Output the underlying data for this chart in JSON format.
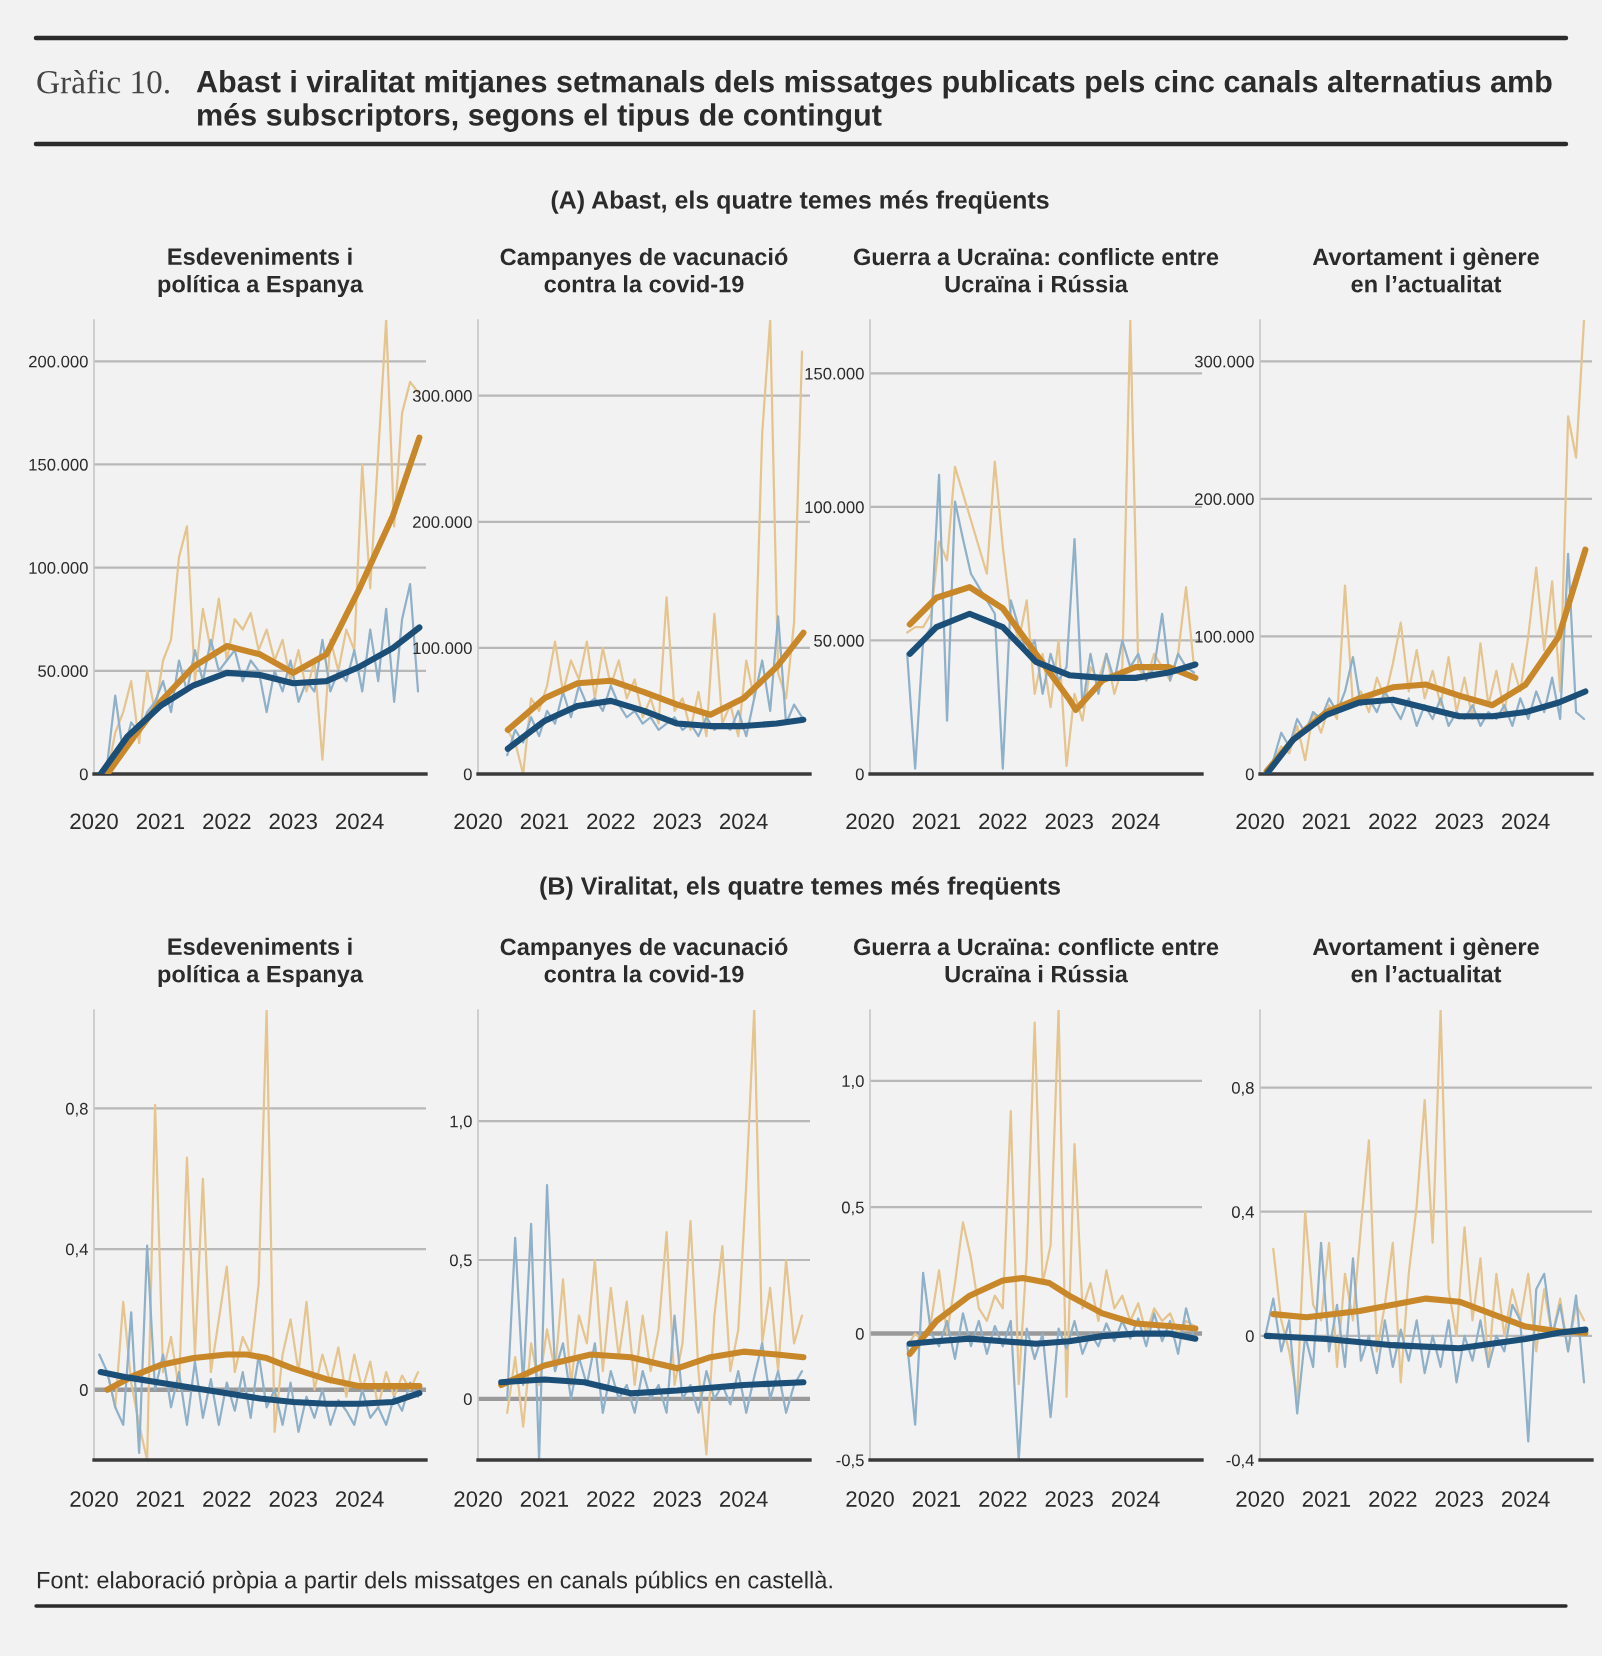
{
  "chart_data": [
    {
      "type": "line",
      "title": "Esdeveniments i\npolítica a Espanya",
      "annotations": [
        "Gràfic 10.",
        "Abast i viralitat mitjanes setmanals dels missatges publicats pels cinc canals alternatius amb més subscriptors, segons el tipus de contingut",
        "(A) Abast, els quatre temes més freqüents",
        "Font: elaboració pròpia a partir dels missatges en canals públics en castellà."
      ],
      "x": [
        2020.08,
        2020.2,
        2020.32,
        2020.44,
        2020.56,
        2020.68,
        2020.8,
        2020.92,
        2021.04,
        2021.16,
        2021.28,
        2021.4,
        2021.52,
        2021.64,
        2021.76,
        2021.88,
        2022.0,
        2022.12,
        2022.24,
        2022.36,
        2022.48,
        2022.6,
        2022.72,
        2022.84,
        2022.96,
        2023.08,
        2023.2,
        2023.32,
        2023.44,
        2023.56,
        2023.68,
        2023.8,
        2023.92,
        2024.04,
        2024.16,
        2024.28,
        2024.4,
        2024.52,
        2024.64,
        2024.76,
        2024.88
      ],
      "xlim": [
        2020,
        2025
      ],
      "xticks": [
        2020,
        2021,
        2022,
        2023,
        2024
      ],
      "yticks": [
        0,
        {
          "value": 50000,
          "label": "50.000"
        },
        {
          "value": 100000,
          "label": "100.000"
        },
        {
          "value": 150000,
          "label": "150.000"
        },
        {
          "value": 200000,
          "label": "200.000"
        }
      ],
      "ylim": [
        0,
        220000
      ],
      "grid": "y",
      "series": [
        {
          "color": "#e5c48e",
          "values": [
            null,
            0,
            20000,
            30000,
            45000,
            15000,
            50000,
            30000,
            55000,
            65000,
            105000,
            120000,
            45000,
            80000,
            60000,
            85000,
            55000,
            75000,
            70000,
            78000,
            60000,
            70000,
            55000,
            65000,
            45000,
            60000,
            40000,
            55000,
            7000,
            65000,
            50000,
            70000,
            60000,
            150000,
            90000,
            155000,
            220000,
            120000,
            175000,
            190000,
            185000
          ]
        },
        {
          "color": "#8fb0c9",
          "values": [
            0,
            5000,
            38000,
            10000,
            25000,
            20000,
            30000,
            35000,
            45000,
            30000,
            55000,
            40000,
            60000,
            45000,
            65000,
            50000,
            55000,
            60000,
            45000,
            55000,
            50000,
            30000,
            50000,
            40000,
            55000,
            35000,
            45000,
            40000,
            65000,
            40000,
            50000,
            45000,
            60000,
            40000,
            70000,
            45000,
            80000,
            35000,
            75000,
            92000,
            40000
          ]
        },
        {
          "color": "#c8882a",
          "x": [
            2020.2,
            2020.6,
            2021,
            2021.5,
            2022,
            2022.5,
            2023,
            2023.5,
            2024,
            2024.5,
            2024.9
          ],
          "values": [
            0,
            18000,
            35000,
            52000,
            62000,
            58000,
            49000,
            58000,
            90000,
            125000,
            163000
          ]
        },
        {
          "color": "#1c4f77",
          "x": [
            2020.1,
            2020.5,
            2021,
            2021.5,
            2022,
            2022.5,
            2023,
            2023.5,
            2024,
            2024.5,
            2024.9
          ],
          "values": [
            0,
            18000,
            33000,
            43000,
            49000,
            48000,
            44000,
            45000,
            52000,
            61000,
            71000
          ]
        }
      ]
    },
    {
      "type": "line",
      "title": "Campanyes de vacunació\ncontra la covid-19",
      "xlim": [
        2020,
        2025
      ],
      "xticks": [
        2020,
        2021,
        2022,
        2023,
        2024
      ],
      "yticks": [
        0,
        {
          "value": 100000,
          "label": "100.000"
        },
        {
          "value": 200000,
          "label": "200.000"
        },
        {
          "value": 300000,
          "label": "300.000"
        }
      ],
      "ylim": [
        0,
        360000
      ],
      "grid": "y",
      "series": [
        {
          "color": "#e5c48e",
          "x": [
            2020.44,
            2020.56,
            2020.68,
            2020.8,
            2020.92,
            2021.04,
            2021.16,
            2021.28,
            2021.4,
            2021.52,
            2021.64,
            2021.76,
            2021.88,
            2022.0,
            2022.12,
            2022.24,
            2022.36,
            2022.48,
            2022.6,
            2022.72,
            2022.84,
            2022.96,
            2023.08,
            2023.2,
            2023.32,
            2023.44,
            2023.56,
            2023.68,
            2023.8,
            2023.92,
            2024.04,
            2024.16,
            2024.28,
            2024.4,
            2024.52,
            2024.64,
            2024.76,
            2024.88
          ],
          "values": [
            35000,
            25000,
            0,
            60000,
            50000,
            70000,
            105000,
            65000,
            90000,
            75000,
            105000,
            60000,
            100000,
            70000,
            90000,
            60000,
            75000,
            45000,
            60000,
            40000,
            140000,
            50000,
            60000,
            35000,
            65000,
            30000,
            127000,
            40000,
            55000,
            30000,
            90000,
            60000,
            270000,
            360000,
            80000,
            60000,
            120000,
            335000
          ]
        },
        {
          "color": "#8fb0c9",
          "x": [
            2020.44,
            2020.56,
            2020.68,
            2020.8,
            2020.92,
            2021.04,
            2021.16,
            2021.28,
            2021.4,
            2021.52,
            2021.64,
            2021.76,
            2021.88,
            2022.0,
            2022.12,
            2022.24,
            2022.36,
            2022.48,
            2022.6,
            2022.72,
            2022.84,
            2022.96,
            2023.08,
            2023.2,
            2023.32,
            2023.44,
            2023.56,
            2023.68,
            2023.8,
            2023.92,
            2024.04,
            2024.16,
            2024.28,
            2024.4,
            2024.52,
            2024.64,
            2024.76,
            2024.88
          ],
          "values": [
            15000,
            35000,
            25000,
            45000,
            30000,
            50000,
            40000,
            65000,
            45000,
            70000,
            55000,
            60000,
            50000,
            70000,
            55000,
            45000,
            50000,
            40000,
            45000,
            35000,
            40000,
            45000,
            35000,
            40000,
            30000,
            45000,
            35000,
            40000,
            35000,
            50000,
            30000,
            60000,
            90000,
            50000,
            125000,
            40000,
            55000,
            45000
          ]
        },
        {
          "color": "#c8882a",
          "x": [
            2020.45,
            2021,
            2021.5,
            2022,
            2022.5,
            2023,
            2023.5,
            2024,
            2024.5,
            2024.9
          ],
          "values": [
            35000,
            60000,
            72000,
            74000,
            65000,
            55000,
            47000,
            60000,
            85000,
            112000
          ]
        },
        {
          "color": "#1c4f77",
          "x": [
            2020.45,
            2021,
            2021.5,
            2022,
            2022.5,
            2023,
            2023.5,
            2024,
            2024.5,
            2024.9
          ],
          "values": [
            20000,
            42000,
            54000,
            58000,
            50000,
            40000,
            38000,
            38000,
            40000,
            43000
          ]
        }
      ]
    },
    {
      "type": "line",
      "title": "Guerra a Ucraïna: conflicte entre\nUcraïna i Rússia",
      "xlim": [
        2020,
        2025
      ],
      "xticks": [
        2020,
        2021,
        2022,
        2023,
        2024
      ],
      "yticks": [
        0,
        {
          "value": 50000,
          "label": "50.000"
        },
        {
          "value": 100000,
          "label": "100.000"
        },
        {
          "value": 150000,
          "label": "150.000"
        }
      ],
      "ylim": [
        0,
        170000
      ],
      "grid": "y",
      "series": [
        {
          "color": "#e5c48e",
          "x": [
            2020.56,
            2020.68,
            2020.8,
            2020.92,
            2021.04,
            2021.16,
            2021.28,
            2021.4,
            2021.52,
            2021.64,
            2021.76,
            2021.88,
            2022.0,
            2022.12,
            2022.24,
            2022.36,
            2022.48,
            2022.6,
            2022.72,
            2022.84,
            2022.96,
            2023.08,
            2023.2,
            2023.32,
            2023.44,
            2023.56,
            2023.68,
            2023.8,
            2023.92,
            2024.04,
            2024.16,
            2024.28,
            2024.4,
            2024.52,
            2024.64,
            2024.76,
            2024.88
          ],
          "values": [
            53000,
            55000,
            55000,
            60000,
            87000,
            80000,
            115000,
            105000,
            95000,
            85000,
            75000,
            117000,
            85000,
            60000,
            50000,
            65000,
            30000,
            45000,
            25000,
            50000,
            3000,
            30000,
            20000,
            40000,
            35000,
            45000,
            30000,
            40000,
            170000,
            40000,
            35000,
            45000,
            40000,
            35000,
            45000,
            70000,
            40000
          ]
        },
        {
          "color": "#8fb0c9",
          "x": [
            2020.56,
            2020.68,
            2020.8,
            2020.92,
            2021.04,
            2021.16,
            2021.28,
            2021.4,
            2021.52,
            2021.64,
            2021.76,
            2021.88,
            2022.0,
            2022.12,
            2022.24,
            2022.36,
            2022.48,
            2022.6,
            2022.72,
            2022.84,
            2022.96,
            2023.08,
            2023.2,
            2023.32,
            2023.44,
            2023.56,
            2023.68,
            2023.8,
            2023.92,
            2024.04,
            2024.16,
            2024.28,
            2024.4,
            2024.52,
            2024.64,
            2024.76,
            2024.88
          ],
          "values": [
            45000,
            2000,
            50000,
            55000,
            112000,
            20000,
            102000,
            88000,
            75000,
            70000,
            65000,
            60000,
            2000,
            65000,
            55000,
            45000,
            50000,
            30000,
            45000,
            35000,
            40000,
            88000,
            25000,
            45000,
            30000,
            45000,
            35000,
            50000,
            40000,
            45000,
            35000,
            40000,
            60000,
            35000,
            45000,
            40000,
            38000
          ]
        },
        {
          "color": "#c8882a",
          "x": [
            2020.6,
            2021,
            2021.5,
            2022,
            2022.5,
            2023,
            2023.1,
            2023.5,
            2024,
            2024.5,
            2024.9
          ],
          "values": [
            56000,
            66000,
            70000,
            62000,
            45000,
            28000,
            24000,
            35000,
            40000,
            40000,
            36000
          ]
        },
        {
          "color": "#1c4f77",
          "x": [
            2020.6,
            2021,
            2021.5,
            2022,
            2022.5,
            2023,
            2023.5,
            2024,
            2024.5,
            2024.9
          ],
          "values": [
            45000,
            55000,
            60000,
            55000,
            42000,
            37000,
            36000,
            36000,
            38000,
            41000
          ]
        }
      ]
    },
    {
      "type": "line",
      "title": "Avortament i gènere\nen l’actualitat",
      "x": [
        2020.08,
        2020.2,
        2020.32,
        2020.44,
        2020.56,
        2020.68,
        2020.8,
        2020.92,
        2021.04,
        2021.16,
        2021.28,
        2021.4,
        2021.52,
        2021.64,
        2021.76,
        2021.88,
        2022.0,
        2022.12,
        2022.24,
        2022.36,
        2022.48,
        2022.6,
        2022.72,
        2022.84,
        2022.96,
        2023.08,
        2023.2,
        2023.32,
        2023.44,
        2023.56,
        2023.68,
        2023.8,
        2023.92,
        2024.04,
        2024.16,
        2024.28,
        2024.4,
        2024.52,
        2024.64,
        2024.76,
        2024.88
      ],
      "xlim": [
        2020,
        2025
      ],
      "xticks": [
        2020,
        2021,
        2022,
        2023,
        2024
      ],
      "yticks": [
        0,
        {
          "value": 100000,
          "label": "100.000"
        },
        {
          "value": 200000,
          "label": "200.000"
        },
        {
          "value": 300000,
          "label": "300.000"
        }
      ],
      "ylim": [
        0,
        330000
      ],
      "grid": "y",
      "series": [
        {
          "color": "#e5c48e",
          "values": [
            null,
            10000,
            20000,
            15000,
            35000,
            10000,
            45000,
            30000,
            50000,
            40000,
            137000,
            50000,
            60000,
            45000,
            70000,
            55000,
            80000,
            110000,
            60000,
            90000,
            55000,
            75000,
            50000,
            85000,
            45000,
            70000,
            40000,
            95000,
            50000,
            75000,
            45000,
            80000,
            60000,
            100000,
            150000,
            90000,
            140000,
            60000,
            260000,
            230000,
            330000
          ]
        },
        {
          "color": "#8fb0c9",
          "values": [
            0,
            10000,
            30000,
            20000,
            40000,
            30000,
            45000,
            40000,
            55000,
            45000,
            60000,
            85000,
            50000,
            55000,
            45000,
            60000,
            50000,
            40000,
            55000,
            35000,
            50000,
            40000,
            55000,
            35000,
            45000,
            40000,
            50000,
            35000,
            45000,
            40000,
            50000,
            35000,
            55000,
            40000,
            60000,
            45000,
            70000,
            40000,
            160000,
            45000,
            40000
          ]
        },
        {
          "color": "#c8882a",
          "x": [
            2020.1,
            2020.5,
            2021,
            2021.5,
            2022,
            2022.5,
            2023,
            2023.5,
            2024,
            2024.5,
            2024.9
          ],
          "values": [
            2000,
            25000,
            45000,
            55000,
            63000,
            65000,
            57000,
            50000,
            65000,
            100000,
            163000
          ]
        },
        {
          "color": "#1c4f77",
          "x": [
            2020.1,
            2020.5,
            2021,
            2021.5,
            2022,
            2022.5,
            2023,
            2023.5,
            2024,
            2024.5,
            2024.9
          ],
          "values": [
            0,
            25000,
            43000,
            52000,
            54000,
            48000,
            42000,
            42000,
            45000,
            52000,
            60000
          ]
        }
      ]
    },
    {
      "type": "line",
      "title": "Esdeveniments i\npolítica a Espanya",
      "annotations": [
        "(B) Viralitat, els quatre temes més freqüents"
      ],
      "x": [
        2020.08,
        2020.2,
        2020.32,
        2020.44,
        2020.56,
        2020.68,
        2020.8,
        2020.92,
        2021.04,
        2021.16,
        2021.28,
        2021.4,
        2021.52,
        2021.64,
        2021.76,
        2021.88,
        2022.0,
        2022.12,
        2022.24,
        2022.36,
        2022.48,
        2022.6,
        2022.72,
        2022.84,
        2022.96,
        2023.08,
        2023.2,
        2023.32,
        2023.44,
        2023.56,
        2023.68,
        2023.8,
        2023.92,
        2024.04,
        2024.16,
        2024.28,
        2024.4,
        2024.52,
        2024.64,
        2024.76,
        2024.88
      ],
      "xlim": [
        2020,
        2025
      ],
      "xticks": [
        2020,
        2021,
        2022,
        2023,
        2024
      ],
      "yticks": [
        0,
        {
          "value": 0.4,
          "label": "0,4"
        },
        {
          "value": 0.8,
          "label": "0,8"
        }
      ],
      "ylim": [
        -0.2,
        1.08
      ],
      "grid": "y",
      "ref_lines": [
        {
          "axis": "y",
          "value": 0,
          "color": "#9a9a9a"
        }
      ],
      "series": [
        {
          "color": "#e5c48e",
          "values": [
            null,
            0.05,
            -0.05,
            0.25,
            0.02,
            -0.1,
            -0.2,
            0.81,
            0.05,
            0.15,
            0.0,
            0.66,
            0.1,
            0.6,
            0.05,
            0.2,
            0.35,
            0.05,
            0.15,
            0.1,
            0.3,
            1.08,
            -0.12,
            0.1,
            0.2,
            0.05,
            0.25,
            0.0,
            0.1,
            0.02,
            0.12,
            -0.02,
            0.1,
            0.0,
            0.08,
            -0.05,
            0.05,
            -0.02,
            0.04,
            0.0,
            0.05
          ]
        },
        {
          "color": "#8fb0c9",
          "values": [
            0.1,
            0.05,
            -0.05,
            -0.1,
            0.22,
            -0.18,
            0.41,
            0.0,
            0.1,
            -0.05,
            0.05,
            -0.1,
            0.08,
            -0.08,
            0.03,
            -0.1,
            0.02,
            -0.06,
            0.05,
            -0.08,
            0.1,
            -0.05,
            0.0,
            -0.1,
            0.02,
            -0.12,
            -0.02,
            -0.08,
            0.0,
            -0.1,
            -0.03,
            -0.06,
            -0.1,
            0.0,
            -0.08,
            -0.05,
            -0.1,
            -0.02,
            -0.06,
            0.02,
            -0.02
          ]
        },
        {
          "color": "#c8882a",
          "x": [
            2020.2,
            2020.6,
            2021,
            2021.5,
            2022,
            2022.3,
            2022.6,
            2023,
            2023.5,
            2024,
            2024.5,
            2024.9
          ],
          "values": [
            0,
            0.04,
            0.07,
            0.09,
            0.1,
            0.1,
            0.09,
            0.06,
            0.03,
            0.01,
            0.01,
            0.01
          ]
        },
        {
          "color": "#1c4f77",
          "x": [
            2020.1,
            2020.5,
            2021,
            2021.5,
            2022,
            2022.5,
            2023,
            2023.5,
            2024,
            2024.5,
            2024.9
          ],
          "values": [
            0.05,
            0.035,
            0.02,
            0.005,
            -0.01,
            -0.025,
            -0.035,
            -0.04,
            -0.04,
            -0.035,
            -0.01
          ]
        }
      ]
    },
    {
      "type": "line",
      "title": "Campanyes de vacunació\ncontra la covid-19",
      "xlim": [
        2020,
        2025
      ],
      "xticks": [
        2020,
        2021,
        2022,
        2023,
        2024
      ],
      "yticks": [
        0,
        {
          "value": 0.5,
          "label": "0,5"
        },
        {
          "value": 1.0,
          "label": "1,0"
        }
      ],
      "ylim": [
        -0.22,
        1.4
      ],
      "grid": "y",
      "ref_lines": [
        {
          "axis": "y",
          "value": 0,
          "color": "#9a9a9a"
        }
      ],
      "series": [
        {
          "color": "#e5c48e",
          "x": [
            2020.44,
            2020.56,
            2020.68,
            2020.8,
            2020.92,
            2021.04,
            2021.16,
            2021.28,
            2021.4,
            2021.52,
            2021.64,
            2021.76,
            2021.88,
            2022.0,
            2022.12,
            2022.24,
            2022.36,
            2022.48,
            2022.6,
            2022.72,
            2022.84,
            2022.96,
            2023.08,
            2023.2,
            2023.32,
            2023.44,
            2023.56,
            2023.68,
            2023.8,
            2023.92,
            2024.04,
            2024.16,
            2024.28,
            2024.4,
            2024.52,
            2024.64,
            2024.76,
            2024.88
          ],
          "values": [
            -0.05,
            0.15,
            -0.1,
            0.2,
            0.05,
            0.25,
            0.1,
            0.43,
            0.05,
            0.3,
            0.2,
            0.5,
            0.1,
            0.4,
            0.15,
            0.35,
            0.05,
            0.3,
            0.1,
            0.25,
            0.6,
            0.05,
            0.2,
            0.64,
            0.1,
            -0.2,
            0.3,
            0.55,
            0.1,
            0.25,
            0.77,
            1.4,
            0.2,
            0.4,
            0.1,
            0.5,
            0.2,
            0.3
          ]
        },
        {
          "color": "#8fb0c9",
          "x": [
            2020.44,
            2020.56,
            2020.68,
            2020.8,
            2020.92,
            2021.04,
            2021.16,
            2021.28,
            2021.4,
            2021.52,
            2021.64,
            2021.76,
            2021.88,
            2022.0,
            2022.12,
            2022.24,
            2022.36,
            2022.48,
            2022.6,
            2022.72,
            2022.84,
            2022.96,
            2023.08,
            2023.2,
            2023.32,
            2023.44,
            2023.56,
            2023.68,
            2023.8,
            2023.92,
            2024.04,
            2024.16,
            2024.28,
            2024.4,
            2024.52,
            2024.64,
            2024.76,
            2024.88
          ],
          "values": [
            0.0,
            0.58,
            0.05,
            0.63,
            -0.22,
            0.77,
            0.1,
            0.2,
            0.0,
            0.15,
            0.05,
            0.2,
            -0.05,
            0.1,
            0.0,
            0.05,
            -0.05,
            0.1,
            0.0,
            0.05,
            -0.05,
            0.3,
            0.0,
            0.05,
            -0.05,
            0.1,
            0.0,
            0.05,
            -0.02,
            0.1,
            -0.05,
            0.08,
            0.2,
            0.0,
            0.1,
            -0.05,
            0.05,
            0.1
          ]
        },
        {
          "color": "#c8882a",
          "x": [
            2020.35,
            2021,
            2021.7,
            2022.3,
            2023,
            2023.5,
            2024,
            2024.5,
            2024.9
          ],
          "values": [
            0.05,
            0.12,
            0.16,
            0.15,
            0.11,
            0.15,
            0.17,
            0.16,
            0.15
          ]
        },
        {
          "color": "#1c4f77",
          "x": [
            2020.35,
            2021,
            2021.6,
            2022.3,
            2023,
            2024,
            2024.9
          ],
          "values": [
            0.06,
            0.07,
            0.06,
            0.02,
            0.03,
            0.05,
            0.06
          ]
        }
      ]
    },
    {
      "type": "line",
      "title": "Guerra a Ucraïna: conflicte entre\nUcraïna i Rússia",
      "xlim": [
        2020,
        2025
      ],
      "xticks": [
        2020,
        2021,
        2022,
        2023,
        2024
      ],
      "yticks": [
        {
          "value": -0.5,
          "label": "-0,5"
        },
        0,
        {
          "value": 0.5,
          "label": "0,5"
        },
        {
          "value": 1.0,
          "label": "1,0"
        }
      ],
      "ylim": [
        -0.5,
        1.28
      ],
      "grid": "y",
      "ref_lines": [
        {
          "axis": "y",
          "value": 0,
          "color": "#9a9a9a"
        }
      ],
      "series": [
        {
          "color": "#e5c48e",
          "x": [
            2020.56,
            2020.68,
            2020.8,
            2020.92,
            2021.04,
            2021.16,
            2021.28,
            2021.4,
            2021.52,
            2021.64,
            2021.76,
            2021.88,
            2022.0,
            2022.12,
            2022.24,
            2022.36,
            2022.48,
            2022.6,
            2022.72,
            2022.84,
            2022.96,
            2023.08,
            2023.2,
            2023.32,
            2023.44,
            2023.56,
            2023.68,
            2023.8,
            2023.92,
            2024.04,
            2024.16,
            2024.28,
            2024.4,
            2024.52,
            2024.64,
            2024.76,
            2024.88
          ],
          "values": [
            -0.05,
            0.0,
            -0.03,
            0.05,
            0.25,
            0.0,
            0.2,
            0.44,
            0.3,
            0.1,
            0.05,
            0.15,
            0.1,
            0.88,
            -0.2,
            0.3,
            1.23,
            0.2,
            0.35,
            1.28,
            -0.25,
            0.75,
            0.1,
            0.2,
            0.05,
            0.25,
            0.1,
            0.15,
            0.05,
            0.12,
            0.0,
            0.1,
            0.05,
            0.08,
            0.0,
            0.05,
            0.03
          ]
        },
        {
          "color": "#8fb0c9",
          "x": [
            2020.56,
            2020.68,
            2020.8,
            2020.92,
            2021.04,
            2021.16,
            2021.28,
            2021.4,
            2021.52,
            2021.64,
            2021.76,
            2021.88,
            2022.0,
            2022.12,
            2022.24,
            2022.36,
            2022.48,
            2022.6,
            2022.72,
            2022.84,
            2022.96,
            2023.08,
            2023.2,
            2023.32,
            2023.44,
            2023.56,
            2023.68,
            2023.8,
            2023.92,
            2024.04,
            2024.16,
            2024.28,
            2024.4,
            2024.52,
            2024.64,
            2024.76,
            2024.88
          ],
          "values": [
            -0.04,
            -0.36,
            0.24,
            0.0,
            -0.05,
            0.05,
            -0.1,
            0.08,
            -0.05,
            0.05,
            -0.08,
            0.03,
            -0.05,
            0.05,
            -0.5,
            0.02,
            -0.1,
            0.0,
            -0.33,
            0.02,
            -0.06,
            0.05,
            -0.08,
            0.0,
            -0.05,
            0.04,
            -0.03,
            0.05,
            -0.02,
            0.06,
            -0.05,
            0.08,
            -0.03,
            0.05,
            -0.08,
            0.1,
            -0.02
          ]
        },
        {
          "color": "#c8882a",
          "x": [
            2020.6,
            2021,
            2021.5,
            2022,
            2022.3,
            2022.7,
            2023,
            2023.5,
            2024,
            2024.5,
            2024.9
          ],
          "values": [
            -0.08,
            0.05,
            0.15,
            0.21,
            0.22,
            0.2,
            0.15,
            0.08,
            0.04,
            0.03,
            0.02
          ]
        },
        {
          "color": "#1c4f77",
          "x": [
            2020.6,
            2021,
            2021.5,
            2022,
            2022.5,
            2023,
            2023.5,
            2024,
            2024.5,
            2024.9
          ],
          "values": [
            -0.04,
            -0.03,
            -0.02,
            -0.03,
            -0.04,
            -0.03,
            -0.01,
            0.0,
            0.0,
            -0.02
          ]
        }
      ]
    },
    {
      "type": "line",
      "title": "Avortament i gènere\nen l’actualitat",
      "x": [
        2020.08,
        2020.2,
        2020.32,
        2020.44,
        2020.56,
        2020.68,
        2020.8,
        2020.92,
        2021.04,
        2021.16,
        2021.28,
        2021.4,
        2021.52,
        2021.64,
        2021.76,
        2021.88,
        2022.0,
        2022.12,
        2022.24,
        2022.36,
        2022.48,
        2022.6,
        2022.72,
        2022.84,
        2022.96,
        2023.08,
        2023.2,
        2023.32,
        2023.44,
        2023.56,
        2023.68,
        2023.8,
        2023.92,
        2024.04,
        2024.16,
        2024.28,
        2024.4,
        2024.52,
        2024.64,
        2024.76,
        2024.88
      ],
      "xlim": [
        2020,
        2025
      ],
      "xticks": [
        2020,
        2021,
        2022,
        2023,
        2024
      ],
      "yticks": [
        {
          "value": -0.4,
          "label": "-0,4"
        },
        0,
        {
          "value": 0.4,
          "label": "0,4"
        },
        {
          "value": 0.8,
          "label": "0,8"
        }
      ],
      "ylim": [
        -0.4,
        1.05
      ],
      "grid": "y",
      "series": [
        {
          "color": "#e5c48e",
          "values": [
            null,
            0.28,
            0.05,
            -0.05,
            -0.2,
            0.4,
            0.1,
            0.05,
            0.3,
            -0.1,
            0.2,
            0.05,
            0.35,
            0.63,
            -0.05,
            0.1,
            0.3,
            -0.15,
            0.2,
            0.42,
            0.76,
            0.3,
            1.05,
            0.15,
            0.0,
            0.35,
            0.05,
            0.25,
            -0.1,
            0.2,
            0.0,
            0.15,
            0.05,
            0.2,
            -0.05,
            0.15,
            0.0,
            0.12,
            -0.05,
            0.1,
            0.05
          ]
        },
        {
          "color": "#8fb0c9",
          "values": [
            0.0,
            0.12,
            -0.05,
            0.05,
            -0.25,
            0.0,
            -0.1,
            0.3,
            -0.05,
            0.1,
            -0.1,
            0.25,
            -0.08,
            0.0,
            -0.12,
            0.05,
            -0.1,
            0.02,
            -0.08,
            0.05,
            -0.12,
            0.0,
            -0.1,
            0.05,
            -0.15,
            0.0,
            -0.08,
            0.05,
            -0.1,
            0.0,
            -0.05,
            0.1,
            0.05,
            -0.34,
            0.15,
            0.2,
            0.0,
            0.1,
            -0.05,
            0.13,
            -0.15
          ]
        },
        {
          "color": "#c8882a",
          "x": [
            2020.2,
            2020.7,
            2021.5,
            2022,
            2022.5,
            2023,
            2023.5,
            2024,
            2024.5,
            2024.9
          ],
          "values": [
            0.07,
            0.06,
            0.08,
            0.1,
            0.12,
            0.11,
            0.07,
            0.03,
            0.015,
            0.01
          ]
        },
        {
          "color": "#1c4f77",
          "x": [
            2020.1,
            2021,
            2022,
            2023,
            2024,
            2024.5,
            2024.9
          ],
          "values": [
            0.0,
            -0.01,
            -0.03,
            -0.04,
            -0.01,
            0.01,
            0.02
          ]
        }
      ]
    }
  ]
}
